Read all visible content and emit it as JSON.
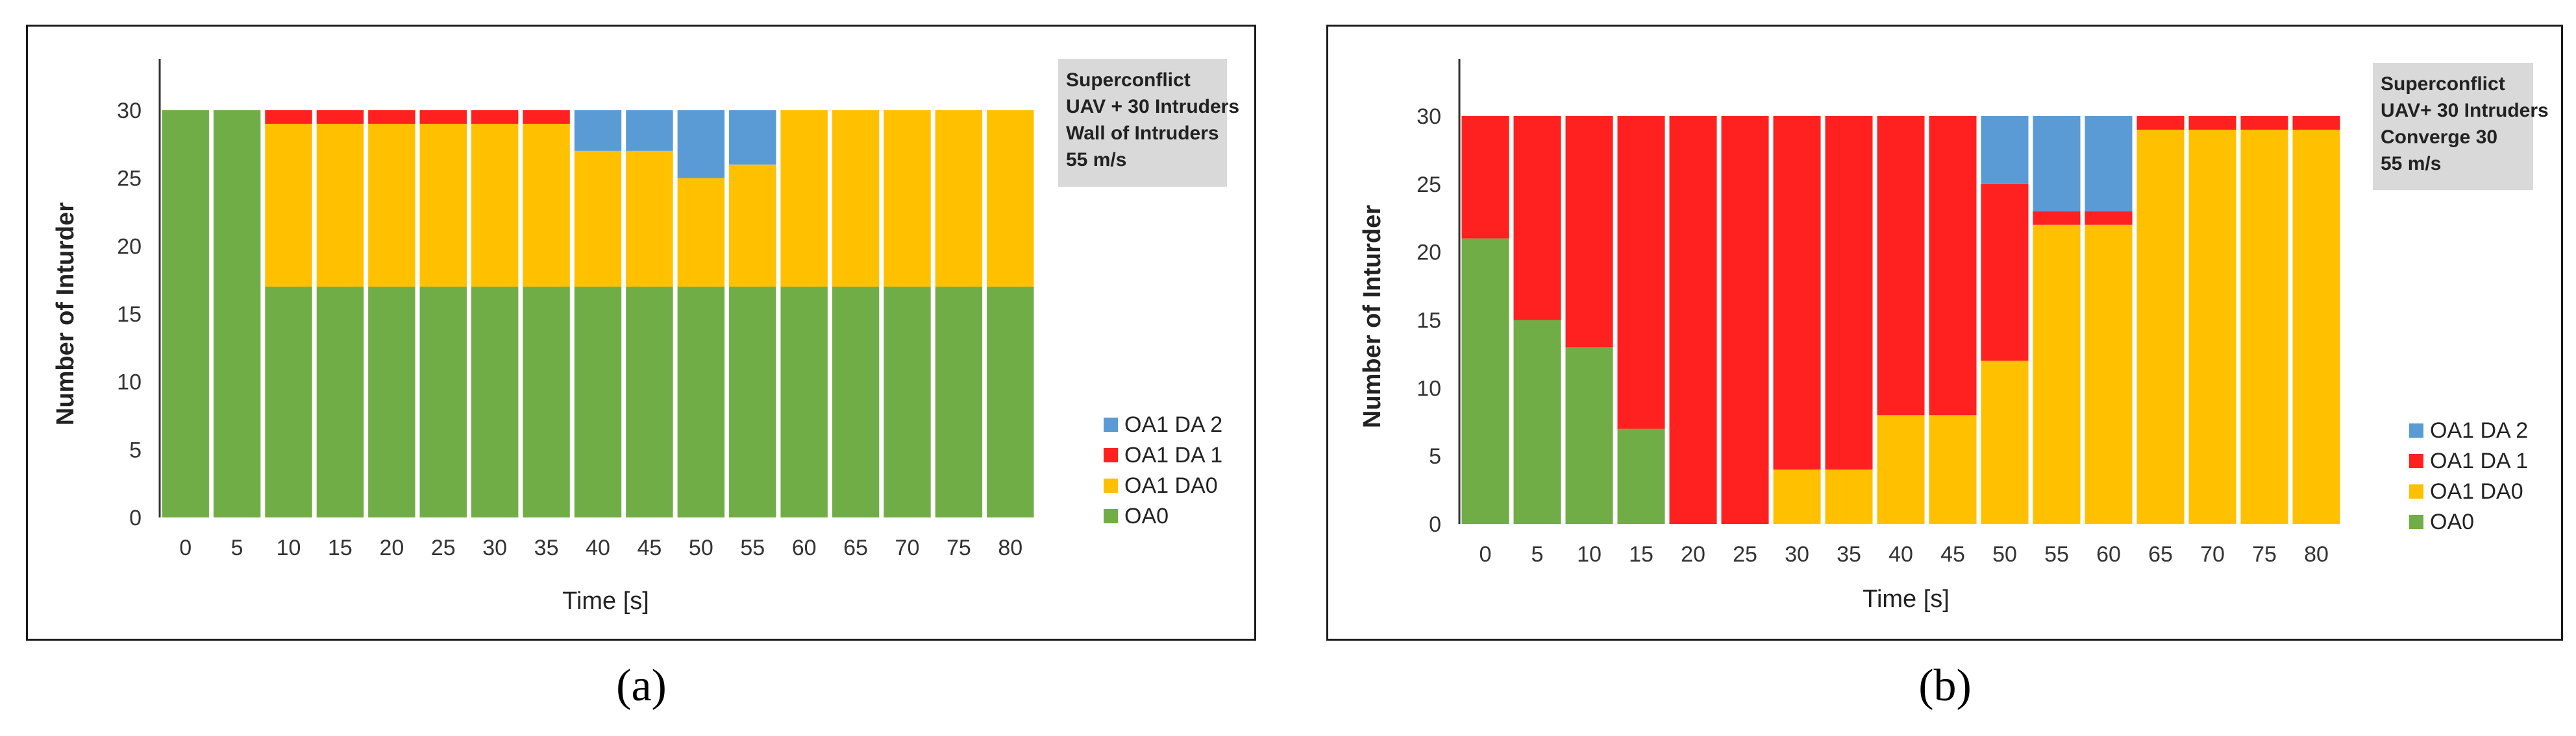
{
  "captions": [
    "(a)",
    "(b)"
  ],
  "colors": {
    "OA0": "#70ad47",
    "OA1 DA0": "#ffc000",
    "OA1 DA 1": "#ff2020",
    "OA1 DA 2": "#5b9bd5",
    "annotation_bg": "#d9d9d9"
  },
  "chart_data": [
    {
      "type": "bar",
      "stacked": true,
      "xlabel": "Time   [s]",
      "ylabel": "Number of Inturder",
      "ylim": [
        0,
        30
      ],
      "yticks": [
        0,
        5,
        10,
        15,
        20,
        25,
        30
      ],
      "grid": false,
      "legend_position": "right",
      "legend": [
        "OA1 DA 2",
        "OA1 DA 1",
        "OA1 DA0",
        "OA0"
      ],
      "annotation": [
        "Superconflict",
        "UAV + 30 Intruders",
        "Wall of Intruders",
        "55 m/s"
      ],
      "categories": [
        "0",
        "5",
        "10",
        "15",
        "20",
        "25",
        "30",
        "35",
        "40",
        "45",
        "50",
        "55",
        "60",
        "65",
        "70",
        "75",
        "80"
      ],
      "series": [
        {
          "name": "OA0",
          "values": [
            30,
            30,
            17,
            17,
            17,
            17,
            17,
            17,
            17,
            17,
            17,
            17,
            17,
            17,
            17,
            17,
            17
          ]
        },
        {
          "name": "OA1 DA0",
          "values": [
            0,
            0,
            12,
            12,
            12,
            12,
            12,
            12,
            10,
            10,
            8,
            9,
            13,
            13,
            13,
            13,
            13
          ]
        },
        {
          "name": "OA1 DA 1",
          "values": [
            0,
            0,
            1,
            1,
            1,
            1,
            1,
            1,
            0,
            0,
            0,
            0,
            0,
            0,
            0,
            0,
            0
          ]
        },
        {
          "name": "OA1 DA 2",
          "values": [
            0,
            0,
            0,
            0,
            0,
            0,
            0,
            0,
            3,
            3,
            5,
            4,
            0,
            0,
            0,
            0,
            0
          ]
        }
      ]
    },
    {
      "type": "bar",
      "stacked": true,
      "xlabel": "Time   [s]",
      "ylabel": "Number of Inturder",
      "ylim": [
        0,
        30
      ],
      "yticks": [
        0,
        5,
        10,
        15,
        20,
        25,
        30
      ],
      "grid": false,
      "legend_position": "right",
      "legend": [
        "OA1 DA 2",
        "OA1 DA 1",
        "OA1 DA0",
        "OA0"
      ],
      "annotation": [
        "Superconflict",
        "UAV+ 30 Intruders",
        "Converge 30",
        "55 m/s"
      ],
      "categories": [
        "0",
        "5",
        "10",
        "15",
        "20",
        "25",
        "30",
        "35",
        "40",
        "45",
        "50",
        "55",
        "60",
        "65",
        "70",
        "75",
        "80"
      ],
      "series": [
        {
          "name": "OA0",
          "values": [
            21,
            15,
            13,
            7,
            0,
            0,
            0,
            0,
            0,
            0,
            0,
            0,
            0,
            0,
            0,
            0,
            0
          ]
        },
        {
          "name": "OA1 DA0",
          "values": [
            0,
            0,
            0,
            0,
            0,
            0,
            4,
            4,
            8,
            8,
            12,
            22,
            22,
            29,
            29,
            29,
            29
          ]
        },
        {
          "name": "OA1 DA 1",
          "values": [
            9,
            15,
            17,
            23,
            30,
            30,
            26,
            26,
            22,
            22,
            13,
            1,
            1,
            1,
            1,
            1,
            1
          ]
        },
        {
          "name": "OA1 DA 2",
          "values": [
            0,
            0,
            0,
            0,
            0,
            0,
            0,
            0,
            0,
            0,
            5,
            7,
            7,
            0,
            0,
            0,
            0
          ]
        }
      ]
    }
  ]
}
